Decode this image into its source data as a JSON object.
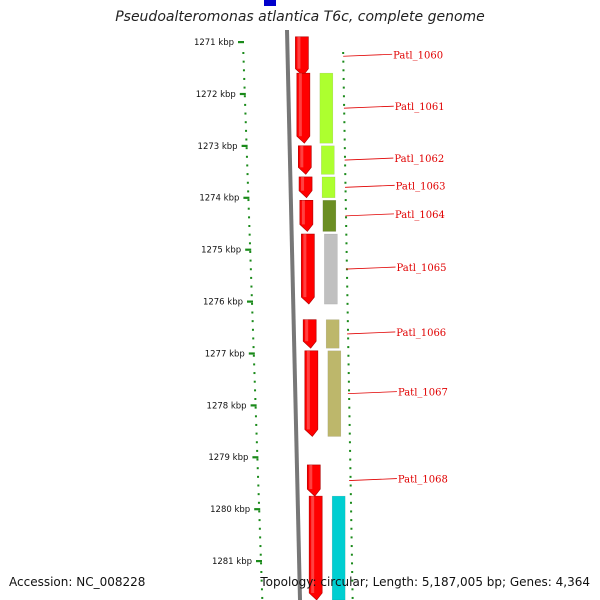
{
  "header": {
    "title": "Pseudoalteromonas atlantica T6c, complete genome"
  },
  "footer": {
    "accession": "Accession: NC_008228",
    "topology": "Topology: circular; Length: 5,187,005 bp; Genes: 4,364"
  },
  "axis": {
    "unit": "kbp",
    "ticks": [
      "1271 kbp",
      "1272 kbp",
      "1273 kbp",
      "1274 kbp",
      "1275 kbp",
      "1276 kbp",
      "1277 kbp",
      "1278 kbp",
      "1279 kbp",
      "1280 kbp",
      "1281 kbp"
    ]
  },
  "colors": {
    "forward": "#ff0000",
    "backbone": "#777777",
    "ruler": "#1a8a1a",
    "label": "#e00000",
    "cog_yellowgreen": "#adff2f",
    "cog_olive": "#6b8e23",
    "cog_gray": "#c0c0c0",
    "cog_khaki": "#bdb76b",
    "cog_cyan": "#00ced1",
    "top_marker": "#0000cc"
  },
  "genes": [
    {
      "label": "Patl_1060",
      "start_kbp": 1270.9,
      "end_kbp": 1271.65,
      "category": ""
    },
    {
      "label": "Patl_1061",
      "start_kbp": 1271.6,
      "end_kbp": 1272.95,
      "category": "yellowgreen"
    },
    {
      "label": "Patl_1062",
      "start_kbp": 1273.0,
      "end_kbp": 1273.55,
      "category": "yellowgreen"
    },
    {
      "label": "Patl_1063",
      "start_kbp": 1273.6,
      "end_kbp": 1274.0,
      "category": "yellowgreen"
    },
    {
      "label": "Patl_1064",
      "start_kbp": 1274.05,
      "end_kbp": 1274.65,
      "category": "olive"
    },
    {
      "label": "Patl_1065",
      "start_kbp": 1274.7,
      "end_kbp": 1276.05,
      "category": "gray"
    },
    {
      "label": "Patl_1066",
      "start_kbp": 1276.35,
      "end_kbp": 1276.9,
      "category": "khaki"
    },
    {
      "label": "Patl_1067",
      "start_kbp": 1276.95,
      "end_kbp": 1278.6,
      "category": "khaki"
    },
    {
      "label": "Patl_1068",
      "start_kbp": 1279.15,
      "end_kbp": 1279.75,
      "category": ""
    },
    {
      "label": "",
      "start_kbp": 1279.75,
      "end_kbp": 1281.8,
      "category": "cyan"
    }
  ]
}
